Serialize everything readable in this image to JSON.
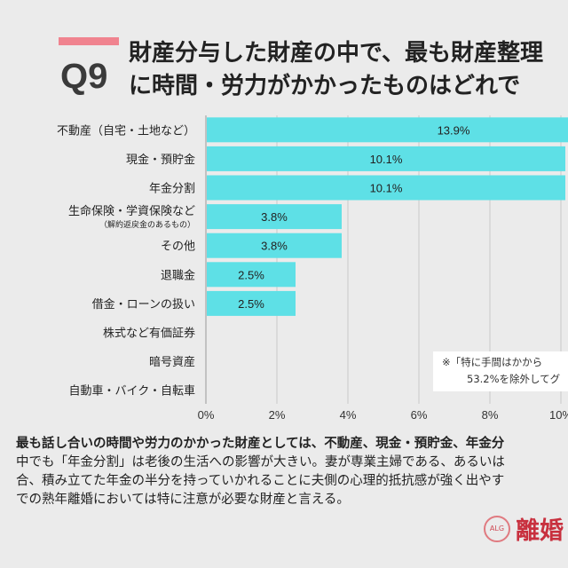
{
  "header": {
    "question_number": "Q9",
    "title_lines": [
      "財産分与した財産の中で、最も財産整理",
      "に時間・労力がかかったものはどれで"
    ]
  },
  "chart_data": {
    "type": "bar",
    "orientation": "horizontal",
    "categories": [
      "不動産（自宅・土地など）",
      "現金・預貯金",
      "年金分割",
      "生命保険・学資保険など",
      "その他",
      "退職金",
      "借金・ローンの扱い",
      "株式など有価証券",
      "暗号資産",
      "自動車・バイク・自転車"
    ],
    "category_sublabels": {
      "3": "（解約返戻金のあるもの）"
    },
    "values": [
      13.9,
      10.1,
      10.1,
      3.8,
      3.8,
      2.5,
      2.5,
      0,
      0,
      0
    ],
    "data_labels": [
      "13.9%",
      "10.1%",
      "10.1%",
      "3.8%",
      "3.8%",
      "2.5%",
      "2.5%",
      "",
      "",
      ""
    ],
    "xlim": [
      0,
      10
    ],
    "x_ticks": [
      "0%",
      "2%",
      "4%",
      "6%",
      "8%",
      "10%"
    ],
    "grid": true,
    "bar_color": "#5ee0e6",
    "title": "",
    "xlabel": "",
    "ylabel": ""
  },
  "note": [
    "※「特に手間はかから",
    "53.2%を除外してグ"
  ],
  "body": {
    "bold_line": "最も話し合いの時間や労力のかかった財産としては、不動産、現金・預貯金、年金分",
    "lines": [
      "中でも「年金分割」は老後の生活への影響が大きい。妻が専業主婦である、あるいは",
      "合、積み立てた年金の半分を持っていかれることに夫側の心理的抵抗感が強く出やす",
      "での熟年離婚においては特に注意が必要な財産と言える。"
    ]
  },
  "logo": {
    "text": "離婚",
    "seal_text": "ALG"
  },
  "colors": {
    "accent": "#f0838f",
    "bar": "#5ee0e6",
    "logo": "#c8303e"
  }
}
